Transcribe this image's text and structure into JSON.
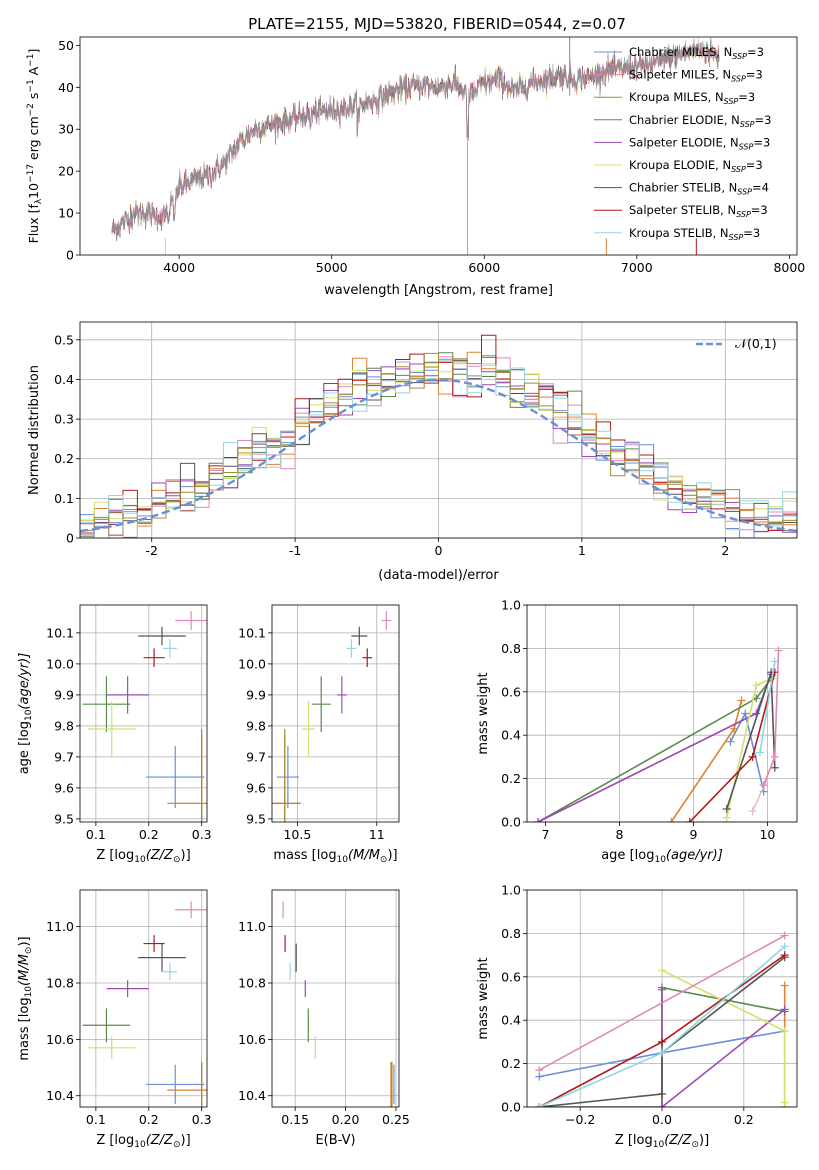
{
  "figure": {
    "title": "PLATE=2155, MJD=53820, FIBERID=0544, z=0.07"
  },
  "chart_data": [
    {
      "id": "spectrum",
      "type": "line",
      "xlabel": "wavelength [Angstrom, rest frame]",
      "ylabel_parts": [
        "Flux [f",
        "λ",
        "10",
        "−17",
        " erg cm",
        "−2",
        " s",
        "−1",
        " A",
        "−1",
        "]"
      ],
      "xlim": [
        3350,
        8050
      ],
      "ylim": [
        0,
        52
      ],
      "xticks": [
        4000,
        5000,
        6000,
        7000,
        8000
      ],
      "yticks": [
        0,
        10,
        20,
        30,
        40,
        50
      ],
      "grid": false,
      "legend_position": "top-right",
      "continuum": {
        "x": [
          3560,
          3650,
          3700,
          3800,
          3900,
          3950,
          4000,
          4100,
          4200,
          4300,
          4400,
          4500,
          4600,
          4700,
          4800,
          4900,
          5000,
          5100,
          5200,
          5300,
          5400,
          5500,
          5600,
          5700,
          5800,
          5900,
          6000,
          6100,
          6200,
          6300,
          6400,
          6500,
          6600,
          6700,
          6800,
          6900,
          7000,
          7100,
          7200,
          7300,
          7400,
          7500,
          7540
        ],
        "y": [
          6,
          8,
          10,
          10,
          9,
          13,
          16,
          18,
          19,
          22,
          27,
          30,
          31,
          32,
          33,
          34,
          34.5,
          35,
          36,
          37,
          39,
          40,
          40.5,
          40,
          41,
          38,
          41,
          42,
          39,
          41,
          42,
          43,
          42,
          42.5,
          44,
          44.5,
          45,
          45.5,
          47,
          48,
          49,
          48,
          47
        ]
      },
      "legend": [
        {
          "base": "Chabrier MILES, N",
          "sub": "SSP",
          "tail": "=3"
        },
        {
          "base": "Salpeter MILES, N",
          "sub": "SSP",
          "tail": "=3"
        },
        {
          "base": "Kroupa MILES, N",
          "sub": "SSP",
          "tail": "=3"
        },
        {
          "base": "Chabrier ELODIE, N",
          "sub": "SSP",
          "tail": "=3"
        },
        {
          "base": "Salpeter ELODIE, N",
          "sub": "SSP",
          "tail": "=3"
        },
        {
          "base": "Kroupa ELODIE, N",
          "sub": "SSP",
          "tail": "=3"
        },
        {
          "base": "Chabrier STELIB, N",
          "sub": "SSP",
          "tail": "=4"
        },
        {
          "base": "Salpeter STELIB, N",
          "sub": "SSP",
          "tail": "=3"
        },
        {
          "base": "Kroupa STELIB, N",
          "sub": "SSP",
          "tail": "=3"
        }
      ]
    },
    {
      "id": "residuals",
      "type": "histogram",
      "xlabel": "(data-model)/error",
      "ylabel": "Normed distribution",
      "xlim": [
        -2.5,
        2.5
      ],
      "ylim": [
        0,
        0.545
      ],
      "xticks": [
        -2,
        -1,
        0,
        1,
        2
      ],
      "yticks": [
        0.0,
        0.1,
        0.2,
        0.3,
        0.4,
        0.5
      ],
      "grid": true,
      "legend_position": "top-right",
      "reference_curve": "standard normal",
      "reference_label": "𝒩(0,1)",
      "bins": 50
    },
    {
      "id": "age_vs_Z",
      "type": "scatter",
      "xlabel_main": "Z [log",
      "xlabel_sub": "10",
      "xlabel_tail": "(Z/Z",
      "xlabel_solar": "⊙",
      "xlabel_end": ")]",
      "ylabel_main": "age  [log",
      "ylabel_sub": "10",
      "ylabel_tail": "(age/yr)]",
      "xlim": [
        0.07,
        0.31
      ],
      "ylim": [
        9.49,
        10.19
      ],
      "xticks": [
        0.1,
        0.2,
        0.3
      ],
      "yticks": [
        9.5,
        9.6,
        9.7,
        9.8,
        9.9,
        10.0,
        10.1
      ],
      "grid": true
    },
    {
      "id": "age_vs_mass",
      "type": "scatter",
      "xlabel_main": "mass [log",
      "xlabel_sub": "10",
      "xlabel_tail": "(M/M",
      "xlabel_solar": "⊙",
      "xlabel_end": ")]",
      "xlim": [
        10.34,
        11.14
      ],
      "ylim": [
        9.49,
        10.19
      ],
      "xticks": [
        10.5,
        11.0
      ],
      "yticks": [
        9.5,
        9.6,
        9.7,
        9.8,
        9.9,
        10.0,
        10.1
      ],
      "grid": true
    },
    {
      "id": "weight_vs_age",
      "type": "line",
      "xlabel_main": "age  [log",
      "xlabel_sub": "10",
      "xlabel_tail": "(age/yr)]",
      "ylabel": "mass weight",
      "xlim": [
        6.75,
        10.4
      ],
      "ylim": [
        0,
        1
      ],
      "xticks": [
        7,
        8,
        9,
        10
      ],
      "yticks": [
        0.0,
        0.2,
        0.4,
        0.6,
        0.8,
        1.0
      ],
      "grid": true,
      "series": [
        {
          "color": "#6a8fd8",
          "x": [
            9.5,
            9.7,
            9.95
          ],
          "y": [
            0.37,
            0.5,
            0.14
          ]
        },
        {
          "color": "#e0812f",
          "x": [
            8.7,
            9.55,
            9.65
          ],
          "y": [
            0.0,
            0.43,
            0.56
          ]
        },
        {
          "color": "#e8b8c8",
          "x": [
            9.8,
            10.0
          ],
          "y": [
            0.05,
            0.2
          ]
        },
        {
          "color": "#5a8a4a",
          "x": [
            6.9,
            9.85,
            10.05
          ],
          "y": [
            0.0,
            0.57,
            0.66
          ]
        },
        {
          "color": "#9b4ab3",
          "x": [
            6.9,
            9.85,
            10.05
          ],
          "y": [
            0.0,
            0.5,
            0.68
          ]
        },
        {
          "color": "#d4e06a",
          "x": [
            9.45,
            9.85,
            10.05
          ],
          "y": [
            0.02,
            0.63,
            0.66
          ]
        },
        {
          "color": "#555555",
          "x": [
            9.45,
            10.05,
            10.1
          ],
          "y": [
            0.06,
            0.69,
            0.25
          ]
        },
        {
          "color": "#b01a1a",
          "x": [
            8.95,
            9.8,
            10.1
          ],
          "y": [
            0.0,
            0.3,
            0.69
          ]
        },
        {
          "color": "#8fd8e0",
          "x": [
            9.9,
            10.1
          ],
          "y": [
            0.32,
            0.74
          ]
        },
        {
          "color": "#e088b8",
          "x": [
            9.95,
            10.1,
            10.15
          ],
          "y": [
            0.17,
            0.3,
            0.79
          ]
        }
      ]
    },
    {
      "id": "mass_vs_Z",
      "type": "scatter",
      "xlabel_main": "Z [log",
      "xlabel_sub": "10",
      "xlabel_tail": "(Z/Z",
      "xlabel_solar": "⊙",
      "xlabel_end": ")]",
      "ylabel_main": "mass [log",
      "ylabel_sub": "10",
      "ylabel_tail": "(M/M",
      "ylabel_solar": "⊙",
      "ylabel_end": ")]",
      "xlim": [
        0.07,
        0.31
      ],
      "ylim": [
        10.36,
        11.13
      ],
      "xticks": [
        0.1,
        0.2,
        0.3
      ],
      "yticks": [
        10.4,
        10.6,
        10.8,
        11.0
      ],
      "grid": true
    },
    {
      "id": "mass_vs_EBV",
      "type": "scatter",
      "xlabel": "E(B-V)",
      "xlim": [
        0.127,
        0.253
      ],
      "ylim": [
        10.36,
        11.13
      ],
      "xticks": [
        0.15,
        0.2,
        0.25
      ],
      "xtick_labels": [
        "0.15",
        "0.20",
        "0.25"
      ],
      "yticks": [
        10.4,
        10.6,
        10.8,
        11.0
      ],
      "grid": true
    },
    {
      "id": "weight_vs_Z",
      "type": "line",
      "xlabel_main": "Z [log",
      "xlabel_sub": "10",
      "xlabel_tail": "(Z/Z",
      "xlabel_solar": "⊙",
      "xlabel_end": ")]",
      "ylabel": "mass weight",
      "xlim": [
        -0.33,
        0.33
      ],
      "ylim": [
        0,
        1
      ],
      "xticks": [
        -0.2,
        0.0,
        0.2
      ],
      "xtick_labels": [
        "−0.2",
        "0.0",
        "0.2"
      ],
      "yticks": [
        0.0,
        0.2,
        0.4,
        0.6,
        0.8,
        1.0
      ],
      "grid": true,
      "series": [
        {
          "color": "#6a8fd8",
          "x": [
            -0.3,
            0.0,
            0.3
          ],
          "y": [
            0.14,
            0.25,
            0.35
          ]
        },
        {
          "color": "#e0812f",
          "x": [
            0.3,
            0.3
          ],
          "y": [
            0.0,
            0.56
          ]
        },
        {
          "color": "#5a8a4a",
          "x": [
            -0.3,
            0.0,
            0.0,
            0.3
          ],
          "y": [
            0.0,
            0.0,
            0.55,
            0.44
          ]
        },
        {
          "color": "#9b4ab3",
          "x": [
            0.0,
            0.0,
            0.3
          ],
          "y": [
            0.54,
            0.0,
            0.45
          ]
        },
        {
          "color": "#d4e06a",
          "x": [
            0.0,
            0.3,
            0.3
          ],
          "y": [
            0.63,
            0.35,
            0.02
          ]
        },
        {
          "color": "#555555",
          "x": [
            -0.3,
            0.0,
            0.0,
            0.3
          ],
          "y": [
            0.0,
            0.06,
            0.25,
            0.69
          ]
        },
        {
          "color": "#b01a1a",
          "x": [
            -0.3,
            0.0,
            0.3
          ],
          "y": [
            0.0,
            0.3,
            0.7
          ]
        },
        {
          "color": "#8fd8e0",
          "x": [
            -0.3,
            0.0,
            0.3
          ],
          "y": [
            0.0,
            0.25,
            0.74
          ]
        },
        {
          "color": "#e088b8",
          "x": [
            -0.3,
            0.3
          ],
          "y": [
            0.17,
            0.79
          ]
        }
      ]
    }
  ],
  "point_estimates": [
    {
      "color": "#6a8fd8",
      "Z": 0.25,
      "Zerr": 0.055,
      "age": 9.635,
      "ageErr": 0.1,
      "mass": 10.44,
      "massErr": 0.07,
      "ebv": 0.248,
      "ebvErr": 0
    },
    {
      "color": "#e0812f",
      "Z": 0.3,
      "Zerr": 0.065,
      "age": 9.55,
      "ageErr": 0.22,
      "mass": 10.42,
      "massErr": 0.1,
      "ebv": 0.245,
      "ebvErr": 0
    },
    {
      "color": "#a68a3a",
      "Z": 0.3,
      "Zerr": 0,
      "age": 9.55,
      "ageErr": 0.24,
      "mass": 10.42,
      "massErr": 0.1,
      "ebv": 0.246,
      "ebvErr": 0
    },
    {
      "color": "#5a8a4a",
      "Z": 0.12,
      "Zerr": 0.045,
      "age": 9.87,
      "ageErr": 0.09,
      "mass": 10.65,
      "massErr": 0.06,
      "ebv": 0.163,
      "ebvErr": 0
    },
    {
      "color": "#9b4ab3",
      "Z": 0.16,
      "Zerr": 0.04,
      "age": 9.9,
      "ageErr": 0.06,
      "mass": 10.78,
      "massErr": 0.03,
      "ebv": 0.16,
      "ebvErr": 0
    },
    {
      "color": "#d4e06a",
      "Z": 0.13,
      "Zerr": 0.045,
      "age": 9.79,
      "ageErr": 0.09,
      "mass": 10.57,
      "massErr": 0.04,
      "ebv": 0.17,
      "ebvErr": 0
    },
    {
      "color": "#555555",
      "Z": 0.225,
      "Zerr": 0.045,
      "age": 10.09,
      "ageErr": 0.03,
      "mass": 10.89,
      "massErr": 0.05,
      "ebv": 0.151,
      "ebvErr": 0
    },
    {
      "color": "#b01a1a",
      "Z": 0.21,
      "Zerr": 0.02,
      "age": 10.02,
      "ageErr": 0.03,
      "mass": 10.94,
      "massErr": 0.03,
      "ebv": 0.14,
      "ebvErr": 0
    },
    {
      "color": "#8fd8e0",
      "Z": 0.24,
      "Zerr": 0.013,
      "age": 10.05,
      "ageErr": 0.03,
      "mass": 10.84,
      "massErr": 0.03,
      "ebv": 0.145,
      "ebvErr": 0
    },
    {
      "color": "#e088b8",
      "Z": 0.28,
      "Zerr": 0.03,
      "age": 10.14,
      "ageErr": 0.03,
      "mass": 11.06,
      "massErr": 0.03,
      "ebv": 0.138,
      "ebvErr": 0
    }
  ],
  "colors": [
    "#6a8fd8",
    "#e0812f",
    "#a68a3a",
    "#5a8a4a",
    "#9b4ab3",
    "#d4e06a",
    "#555555",
    "#b01a1a",
    "#8fd8e0",
    "#e088b8"
  ]
}
